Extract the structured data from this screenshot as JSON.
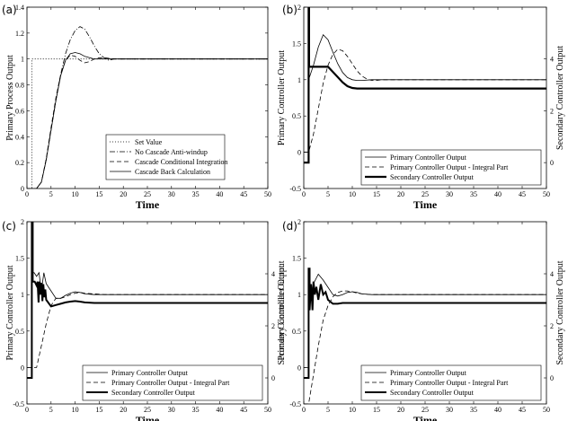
{
  "chart_data": [
    {
      "panel_label": "(a)",
      "type": "line",
      "xlabel": "Time",
      "ylabel": "Primary Process Output",
      "xlim": [
        0,
        50
      ],
      "ylim": [
        0,
        1.4
      ],
      "xticks": [
        "0",
        "5",
        "10",
        "15",
        "20",
        "25",
        "30",
        "35",
        "40",
        "45",
        "50"
      ],
      "yticks": [
        "0",
        "0.2",
        "0.4",
        "0.6",
        "0.8",
        "1",
        "1.2",
        "1.4"
      ],
      "yticks_values": [
        0,
        0.2,
        0.4,
        0.6,
        0.8,
        1,
        1.2,
        1.4
      ],
      "legend_position": "bottom-right",
      "series": [
        {
          "name": "Set Value",
          "style": "dotted",
          "width": 0.8,
          "x": [
            0,
            1,
            1,
            50
          ],
          "y": [
            0,
            0,
            1,
            1
          ]
        },
        {
          "name": "No Cascade Anti-windup",
          "style": "dashdot",
          "width": 0.8,
          "x": [
            0,
            2,
            3,
            4,
            5,
            6,
            7,
            8,
            9,
            10,
            11,
            12,
            13,
            14,
            15,
            16,
            17,
            18,
            20,
            50
          ],
          "y": [
            0,
            0,
            0.05,
            0.22,
            0.45,
            0.68,
            0.88,
            1.04,
            1.15,
            1.22,
            1.25,
            1.23,
            1.17,
            1.1,
            1.04,
            1.01,
            0.99,
            1.0,
            1.0,
            1.0
          ]
        },
        {
          "name": "Cascade Conditional Integration",
          "style": "dashed",
          "width": 0.8,
          "x": [
            0,
            2,
            3,
            4,
            5,
            6,
            7,
            8,
            9,
            10,
            11,
            12,
            13,
            14,
            15,
            16,
            18,
            20,
            50
          ],
          "y": [
            0,
            0,
            0.05,
            0.23,
            0.47,
            0.7,
            0.88,
            0.99,
            1.03,
            1.02,
            0.99,
            0.97,
            0.98,
            1.0,
            1.01,
            1.01,
            1.0,
            1.0,
            1.0
          ]
        },
        {
          "name": "Cascade Back Calculation",
          "style": "solid",
          "width": 0.8,
          "x": [
            0,
            2,
            3,
            4,
            5,
            6,
            7,
            8,
            9,
            10,
            11,
            12,
            13,
            14,
            15,
            16,
            17,
            18,
            20,
            50
          ],
          "y": [
            0,
            0,
            0.05,
            0.22,
            0.45,
            0.68,
            0.87,
            0.99,
            1.04,
            1.05,
            1.04,
            1.02,
            1.01,
            1.0,
            1.0,
            1.0,
            1.0,
            1.0,
            1.0,
            1.0
          ]
        }
      ]
    },
    {
      "panel_label": "(b)",
      "type": "line",
      "xlabel": "Time",
      "ylabel": "Primary Controller Output",
      "ylabel_right": "Secondary Controller Output",
      "xlim": [
        0,
        50
      ],
      "ylim": [
        -0.5,
        2
      ],
      "ylim_right": [
        -1,
        6
      ],
      "xticks": [
        "0",
        "5",
        "10",
        "15",
        "20",
        "25",
        "30",
        "35",
        "40",
        "45",
        "50"
      ],
      "yticks": [
        "-0.5",
        "0",
        "0.5",
        "1",
        "1.5",
        "2"
      ],
      "yticks_values": [
        -0.5,
        0,
        0.5,
        1,
        1.5,
        2
      ],
      "yticks_right": [
        "0",
        "2",
        "4"
      ],
      "yticks_right_values": [
        0,
        2,
        4
      ],
      "legend_position": "bottom-right",
      "series": [
        {
          "name": "Primary Controller Output",
          "style": "solid",
          "width": 0.8,
          "x": [
            0,
            1,
            1,
            2,
            3,
            4,
            5,
            6,
            7,
            8,
            9,
            10,
            11,
            12,
            14,
            16,
            20,
            50
          ],
          "y": [
            0,
            0,
            1.0,
            1.2,
            1.45,
            1.62,
            1.55,
            1.38,
            1.22,
            1.1,
            1.03,
            1.0,
            0.99,
            0.99,
            1.0,
            1.0,
            1.0,
            1.0
          ]
        },
        {
          "name": "Primary Controller Output - Integral Part",
          "style": "dashed",
          "width": 0.8,
          "x": [
            0,
            1,
            2,
            3,
            4,
            5,
            6,
            7,
            8,
            9,
            10,
            11,
            12,
            13,
            14,
            15,
            16,
            18,
            20,
            50
          ],
          "y": [
            0,
            0,
            0.25,
            0.6,
            0.95,
            1.2,
            1.35,
            1.42,
            1.4,
            1.32,
            1.22,
            1.12,
            1.05,
            1.01,
            0.99,
            0.99,
            1.0,
            1.0,
            1.0,
            1.0
          ]
        },
        {
          "name": "Secondary Controller Output",
          "style": "solid",
          "width": 2.2,
          "axis": "right",
          "x": [
            0,
            1,
            1,
            1.1,
            1.1,
            2,
            5,
            6,
            7,
            8,
            9,
            10,
            11,
            12,
            14,
            20,
            50
          ],
          "y": [
            0,
            0,
            6.2,
            6.2,
            3.7,
            3.7,
            3.7,
            3.5,
            3.3,
            3.1,
            2.95,
            2.88,
            2.86,
            2.86,
            2.86,
            2.86,
            2.86
          ]
        }
      ]
    },
    {
      "panel_label": "(c)",
      "type": "line",
      "xlabel": "Time",
      "ylabel": "Primary Controller Output",
      "ylabel_right": "Secondary Controller Output",
      "xlim": [
        0,
        50
      ],
      "ylim": [
        -0.5,
        2
      ],
      "ylim_right": [
        -1,
        6
      ],
      "xticks": [
        "0",
        "5",
        "10",
        "15",
        "20",
        "25",
        "30",
        "35",
        "40",
        "45",
        "50"
      ],
      "yticks": [
        "-0.5",
        "0",
        "0.5",
        "1",
        "1.5",
        "2"
      ],
      "yticks_values": [
        -0.5,
        0,
        0.5,
        1,
        1.5,
        2
      ],
      "yticks_right": [
        "0",
        "2",
        "4"
      ],
      "yticks_right_values": [
        0,
        2,
        4
      ],
      "legend_position": "bottom-right",
      "series": [
        {
          "name": "Primary Controller Output",
          "style": "solid",
          "width": 0.8,
          "x": [
            0,
            1,
            1,
            1.5,
            2,
            2.5,
            3,
            3.5,
            4,
            5,
            6,
            7,
            8,
            9,
            10,
            11,
            12,
            14,
            16,
            20,
            50
          ],
          "y": [
            0,
            0,
            1.3,
            1.3,
            1.25,
            1.3,
            1.05,
            1.3,
            1.15,
            1.05,
            0.95,
            0.95,
            0.99,
            1.02,
            1.04,
            1.03,
            1.01,
            1.0,
            1.0,
            1.0,
            1.0
          ]
        },
        {
          "name": "Primary Controller Output - Integral Part",
          "style": "dashed",
          "width": 0.8,
          "x": [
            0,
            2,
            3,
            4,
            5,
            6,
            7,
            8,
            9,
            10,
            11,
            12,
            14,
            16,
            20,
            50
          ],
          "y": [
            0,
            0,
            0.3,
            0.6,
            0.85,
            0.95,
            0.95,
            0.97,
            1.0,
            1.02,
            1.03,
            1.02,
            1.01,
            1.0,
            1.0,
            1.0
          ]
        },
        {
          "name": "Secondary Controller Output",
          "style": "solid",
          "width": 2.0,
          "axis": "right",
          "x": [
            0,
            1,
            1,
            1.2,
            1.2,
            1.6,
            2,
            2.2,
            2.4,
            2.6,
            2.8,
            3,
            3.2,
            3.4,
            3.6,
            3.8,
            4,
            5,
            6,
            7,
            8,
            9,
            10,
            11,
            12,
            14,
            20,
            50
          ],
          "y": [
            0,
            0,
            6.2,
            6.2,
            3.7,
            3.7,
            3.55,
            3.7,
            2.9,
            3.7,
            3.2,
            3.65,
            2.95,
            3.6,
            3.1,
            3.4,
            3.0,
            2.75,
            2.8,
            2.85,
            2.9,
            2.93,
            2.95,
            2.93,
            2.9,
            2.88,
            2.88,
            2.88
          ]
        }
      ]
    },
    {
      "panel_label": "(d)",
      "type": "line",
      "xlabel": "Time",
      "ylabel": "Primary Controller Output",
      "ylabel_right": "Secondary Controller Output",
      "xlim": [
        0,
        50
      ],
      "ylim": [
        -0.5,
        2
      ],
      "ylim_right": [
        -1,
        6
      ],
      "xticks": [
        "0",
        "5",
        "10",
        "15",
        "20",
        "25",
        "30",
        "35",
        "40",
        "45",
        "50"
      ],
      "yticks": [
        "-0.5",
        "0",
        "0.5",
        "1",
        "1.5",
        "2"
      ],
      "yticks_values": [
        -0.5,
        0,
        0.5,
        1,
        1.5,
        2
      ],
      "yticks_right": [
        "0",
        "2",
        "4"
      ],
      "yticks_right_values": [
        0,
        2,
        4
      ],
      "legend_position": "bottom-right",
      "series": [
        {
          "name": "Primary Controller Output",
          "style": "solid",
          "width": 0.8,
          "x": [
            0,
            1,
            1,
            2,
            3,
            4,
            5,
            6,
            7,
            8,
            9,
            10,
            11,
            12,
            14,
            16,
            20,
            50
          ],
          "y": [
            0,
            0,
            0.9,
            1.15,
            1.28,
            1.2,
            1.1,
            1.0,
            0.98,
            1.0,
            1.03,
            1.04,
            1.03,
            1.01,
            1.0,
            1.0,
            1.0,
            1.0
          ]
        },
        {
          "name": "Primary Controller Output - Integral Part",
          "style": "dashed",
          "width": 0.8,
          "x": [
            0,
            1,
            2,
            3,
            4,
            5,
            6,
            7,
            8,
            9,
            10,
            11,
            12,
            14,
            16,
            20,
            50
          ],
          "y": [
            -0.5,
            -0.5,
            -0.1,
            0.3,
            0.65,
            0.85,
            0.97,
            1.03,
            1.05,
            1.05,
            1.04,
            1.02,
            1.01,
            1.0,
            1.0,
            1.0,
            1.0
          ]
        },
        {
          "name": "Secondary Controller Output",
          "style": "solid",
          "width": 2.0,
          "axis": "right",
          "x": [
            0,
            1,
            1,
            1.2,
            1.2,
            1.5,
            1.8,
            2,
            2.3,
            2.6,
            3,
            3.5,
            4,
            4.5,
            5,
            6,
            7,
            8,
            10,
            12,
            14,
            20,
            50
          ],
          "y": [
            0,
            0,
            4.2,
            4.2,
            2.6,
            3.6,
            2.6,
            3.7,
            3.2,
            3.5,
            3.0,
            3.6,
            3.2,
            3.3,
            3.0,
            2.85,
            2.85,
            2.88,
            2.88,
            2.88,
            2.88,
            2.88,
            2.88
          ]
        }
      ]
    }
  ]
}
